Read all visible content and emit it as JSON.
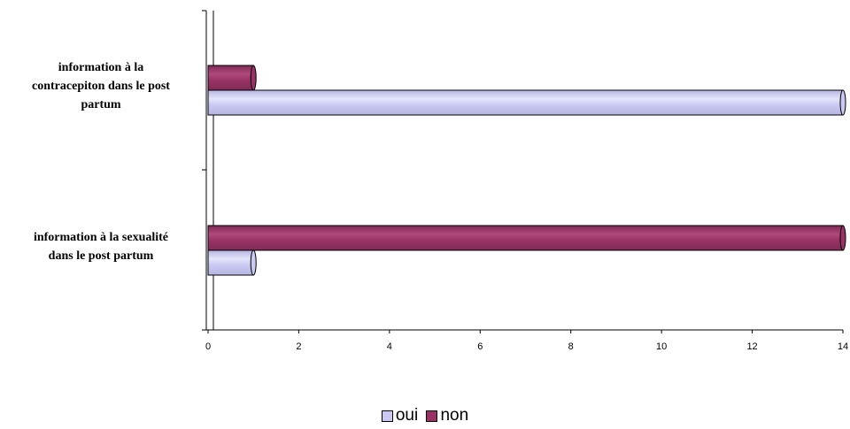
{
  "chart_data": {
    "type": "bar",
    "orientation": "horizontal",
    "categories": [
      "information à la contracepiton dans le post partum",
      "information à la sexualité dans le post partum"
    ],
    "series": [
      {
        "name": "oui",
        "values": [
          14,
          1
        ],
        "color": "#c9c9f2"
      },
      {
        "name": "non",
        "values": [
          1,
          14
        ],
        "color": "#993366"
      }
    ],
    "xlim": [
      0,
      14
    ],
    "xticks": [
      "0",
      "2",
      "4",
      "6",
      "8",
      "10",
      "12",
      "14"
    ],
    "grid": false,
    "legend_position": "bottom"
  },
  "labels": {
    "cat0_line1": "information à la",
    "cat0_line2": "contracepiton dans le post",
    "cat0_line3": "partum",
    "cat1_line1": "information à la sexualité",
    "cat1_line2": "dans le post partum"
  }
}
